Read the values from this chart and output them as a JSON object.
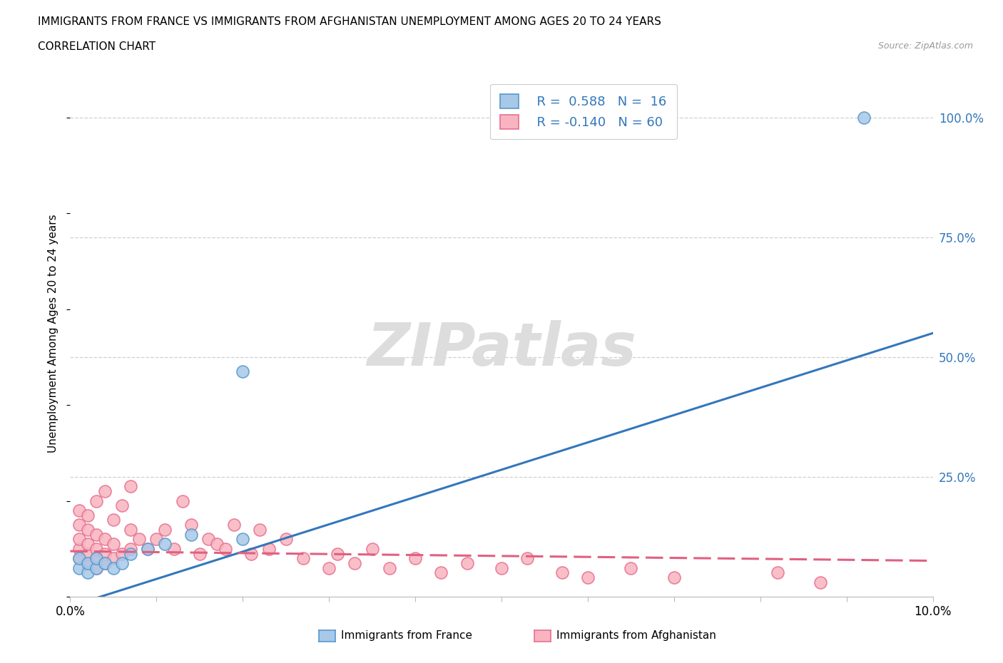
{
  "title_line1": "IMMIGRANTS FROM FRANCE VS IMMIGRANTS FROM AFGHANISTAN UNEMPLOYMENT AMONG AGES 20 TO 24 YEARS",
  "title_line2": "CORRELATION CHART",
  "source_text": "Source: ZipAtlas.com",
  "ylabel": "Unemployment Among Ages 20 to 24 years",
  "xlim": [
    0.0,
    0.1
  ],
  "ylim": [
    0.0,
    1.1
  ],
  "ytick_right": [
    0.0,
    0.25,
    0.5,
    0.75,
    1.0
  ],
  "ytick_right_labels": [
    "",
    "25.0%",
    "50.0%",
    "75.0%",
    "100.0%"
  ],
  "grid_color": "#d0d0d0",
  "background_color": "#ffffff",
  "france_fill_color": "#a8c8e8",
  "afghanistan_fill_color": "#f8b4c0",
  "france_edge_color": "#5599cc",
  "afghanistan_edge_color": "#e87090",
  "france_line_color": "#3377bb",
  "afghanistan_line_color": "#e06080",
  "legend_text_color": "#3377bb",
  "watermark_color": "#dddddd",
  "france_scatter_x": [
    0.001,
    0.001,
    0.002,
    0.002,
    0.003,
    0.003,
    0.004,
    0.005,
    0.006,
    0.007,
    0.009,
    0.011,
    0.014,
    0.02,
    0.02,
    0.092
  ],
  "france_scatter_y": [
    0.06,
    0.08,
    0.05,
    0.07,
    0.06,
    0.08,
    0.07,
    0.06,
    0.07,
    0.09,
    0.1,
    0.11,
    0.13,
    0.47,
    0.12,
    1.0
  ],
  "afghanistan_scatter_x": [
    0.001,
    0.001,
    0.001,
    0.001,
    0.001,
    0.002,
    0.002,
    0.002,
    0.002,
    0.002,
    0.003,
    0.003,
    0.003,
    0.003,
    0.003,
    0.004,
    0.004,
    0.004,
    0.004,
    0.005,
    0.005,
    0.005,
    0.006,
    0.006,
    0.007,
    0.007,
    0.007,
    0.008,
    0.009,
    0.01,
    0.011,
    0.012,
    0.013,
    0.014,
    0.015,
    0.016,
    0.017,
    0.018,
    0.019,
    0.021,
    0.022,
    0.023,
    0.025,
    0.027,
    0.03,
    0.031,
    0.033,
    0.035,
    0.037,
    0.04,
    0.043,
    0.046,
    0.05,
    0.053,
    0.057,
    0.06,
    0.065,
    0.07,
    0.082,
    0.087
  ],
  "afghanistan_scatter_y": [
    0.08,
    0.1,
    0.12,
    0.15,
    0.18,
    0.07,
    0.09,
    0.11,
    0.14,
    0.17,
    0.06,
    0.08,
    0.1,
    0.13,
    0.2,
    0.07,
    0.09,
    0.12,
    0.22,
    0.08,
    0.11,
    0.16,
    0.09,
    0.19,
    0.1,
    0.14,
    0.23,
    0.12,
    0.1,
    0.12,
    0.14,
    0.1,
    0.2,
    0.15,
    0.09,
    0.12,
    0.11,
    0.1,
    0.15,
    0.09,
    0.14,
    0.1,
    0.12,
    0.08,
    0.06,
    0.09,
    0.07,
    0.1,
    0.06,
    0.08,
    0.05,
    0.07,
    0.06,
    0.08,
    0.05,
    0.04,
    0.06,
    0.04,
    0.05,
    0.03
  ],
  "france_line_x0": 0.0,
  "france_line_y0": -0.02,
  "france_line_x1": 0.1,
  "france_line_y1": 0.55,
  "afghanistan_line_x0": 0.0,
  "afghanistan_line_y0": 0.095,
  "afghanistan_line_x1": 0.1,
  "afghanistan_line_y1": 0.075
}
